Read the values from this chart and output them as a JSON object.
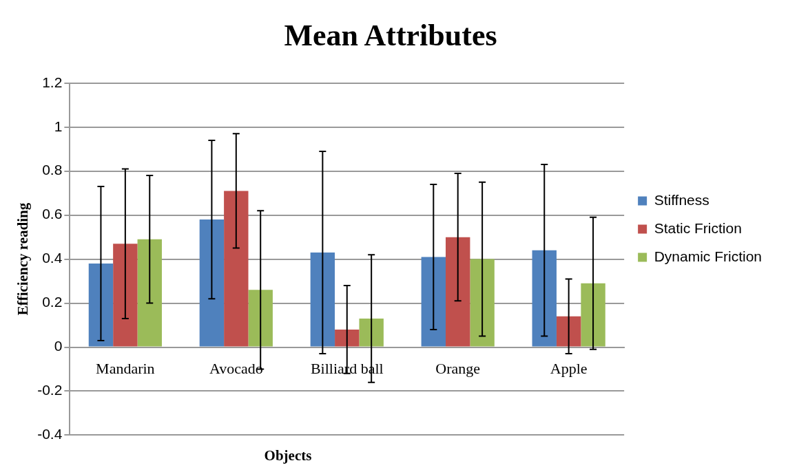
{
  "chart_data": {
    "type": "bar",
    "title": "Mean Attributes",
    "xlabel": "Objects",
    "ylabel": "Efficiency reading",
    "categories": [
      "Mandarin",
      "Avocado",
      "Billiard ball",
      "Orange",
      "Apple"
    ],
    "series": [
      {
        "name": "Stiffness",
        "color": "#4f81bd",
        "values": [
          0.38,
          0.58,
          0.43,
          0.41,
          0.44
        ],
        "errors": [
          0.35,
          0.36,
          0.46,
          0.33,
          0.39
        ]
      },
      {
        "name": "Static Friction",
        "color": "#c0504d",
        "values": [
          0.47,
          0.71,
          0.08,
          0.5,
          0.14
        ],
        "errors": [
          0.34,
          0.26,
          0.2,
          0.29,
          0.17
        ]
      },
      {
        "name": "Dynamic Friction",
        "color": "#9bbb59",
        "values": [
          0.49,
          0.26,
          0.13,
          0.4,
          0.29
        ],
        "errors": [
          0.29,
          0.36,
          0.29,
          0.35,
          0.3
        ]
      }
    ],
    "ylim": [
      -0.4,
      1.2
    ],
    "yticks": [
      -0.4,
      -0.2,
      0,
      0.2,
      0.4,
      0.6,
      0.8,
      1,
      1.2
    ],
    "grid": "y",
    "legend": "right"
  }
}
